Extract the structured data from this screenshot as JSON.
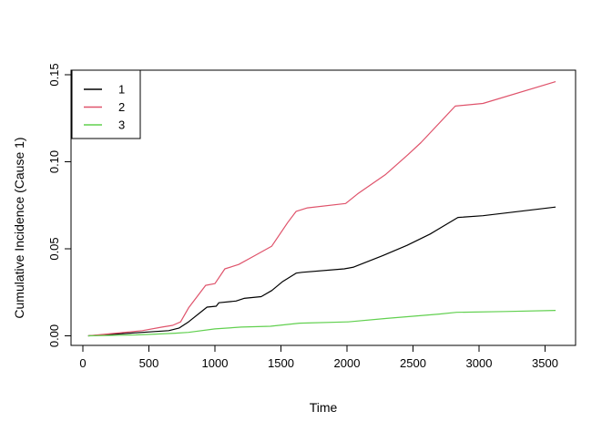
{
  "chart_data": {
    "type": "line",
    "title": "",
    "xlabel": "Time",
    "ylabel": "Cumulative Incidence (Cause 1)",
    "xlim": [
      0,
      3600
    ],
    "ylim": [
      0,
      0.15
    ],
    "x_ticks": [
      0,
      500,
      1000,
      1500,
      2000,
      2500,
      3000,
      3500
    ],
    "x_tick_labels": [
      "0",
      "500",
      "1000",
      "1500",
      "2000",
      "2500",
      "3000",
      "3500"
    ],
    "y_ticks": [
      0,
      0.05,
      0.1,
      0.15
    ],
    "y_tick_labels": [
      "0.00",
      "0.05",
      "0.10",
      "0.15"
    ],
    "grid": false,
    "box": true,
    "background": "#ffffff",
    "axis_color": "#000000",
    "legend": {
      "position": "topleft",
      "entries": [
        {
          "label": "1",
          "color": "#000000"
        },
        {
          "label": "2",
          "color": "#DF536B"
        },
        {
          "label": "3",
          "color": "#61D04F"
        }
      ]
    },
    "series": [
      {
        "name": "1",
        "color": "#000000",
        "x": [
          40,
          250,
          450,
          650,
          730,
          800,
          940,
          1010,
          1030,
          1160,
          1220,
          1350,
          1430,
          1510,
          1615,
          1660,
          1980,
          2050,
          2270,
          2455,
          2630,
          2840,
          3030,
          3580
        ],
        "y": [
          0.0,
          0.001,
          0.002,
          0.003,
          0.0045,
          0.008,
          0.0165,
          0.017,
          0.019,
          0.02,
          0.0215,
          0.0225,
          0.026,
          0.031,
          0.036,
          0.0365,
          0.0385,
          0.0395,
          0.046,
          0.052,
          0.0585,
          0.068,
          0.069,
          0.074
        ]
      },
      {
        "name": "2",
        "color": "#DF536B",
        "x": [
          40,
          250,
          450,
          600,
          680,
          740,
          800,
          930,
          1000,
          1075,
          1180,
          1300,
          1430,
          1550,
          1615,
          1700,
          1990,
          2080,
          2290,
          2460,
          2560,
          2820,
          3030,
          3580
        ],
        "y": [
          0.0,
          0.0015,
          0.003,
          0.005,
          0.006,
          0.008,
          0.016,
          0.029,
          0.03,
          0.0385,
          0.041,
          0.046,
          0.0515,
          0.065,
          0.0715,
          0.0735,
          0.076,
          0.0815,
          0.0925,
          0.104,
          0.111,
          0.132,
          0.1335,
          0.146
        ]
      },
      {
        "name": "3",
        "color": "#61D04F",
        "x": [
          40,
          400,
          550,
          700,
          800,
          1000,
          1200,
          1420,
          1640,
          2010,
          2300,
          2700,
          2830,
          3200,
          3580
        ],
        "y": [
          0.0,
          0.0005,
          0.001,
          0.0015,
          0.002,
          0.004,
          0.005,
          0.0055,
          0.0073,
          0.008,
          0.01,
          0.0125,
          0.0135,
          0.014,
          0.0146
        ]
      }
    ]
  }
}
